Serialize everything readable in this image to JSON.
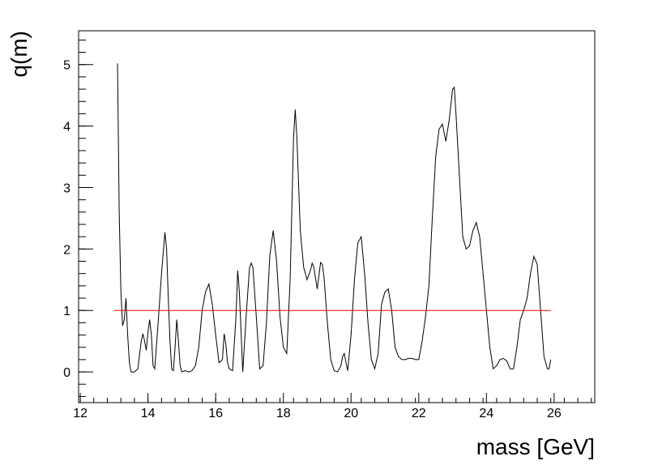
{
  "chart_data": {
    "type": "line",
    "title": "",
    "xlabel": "mass [GeV]",
    "ylabel": "q(m)",
    "xlim": [
      11.95,
      27.2
    ],
    "ylim": [
      -0.5,
      5.55
    ],
    "x_ticks": [
      12,
      14,
      16,
      18,
      20,
      22,
      24,
      26
    ],
    "y_ticks": [
      0,
      1,
      2,
      3,
      4,
      5
    ],
    "grid": false,
    "legend": "none",
    "series": [
      {
        "color": "#000000",
        "x": [
          13.1,
          13.15,
          13.2,
          13.25,
          13.3,
          13.35,
          13.4,
          13.45,
          13.5,
          13.55,
          13.6,
          13.7,
          13.8,
          13.85,
          13.9,
          13.95,
          14.0,
          14.05,
          14.1,
          14.15,
          14.2,
          14.3,
          14.4,
          14.5,
          14.55,
          14.6,
          14.65,
          14.7,
          14.75,
          14.8,
          14.85,
          14.9,
          14.95,
          15.0,
          15.1,
          15.2,
          15.3,
          15.4,
          15.5,
          15.6,
          15.7,
          15.8,
          15.9,
          16.0,
          16.1,
          16.2,
          16.25,
          16.3,
          16.35,
          16.4,
          16.5,
          16.6,
          16.65,
          16.7,
          16.8,
          16.9,
          17.0,
          17.05,
          17.1,
          17.2,
          17.3,
          17.4,
          17.5,
          17.6,
          17.7,
          17.8,
          17.9,
          18.0,
          18.1,
          18.2,
          18.3,
          18.35,
          18.4,
          18.5,
          18.6,
          18.7,
          18.8,
          18.85,
          18.9,
          19.0,
          19.1,
          19.15,
          19.2,
          19.3,
          19.4,
          19.5,
          19.6,
          19.7,
          19.75,
          19.8,
          19.85,
          19.9,
          20.0,
          20.1,
          20.2,
          20.3,
          20.4,
          20.5,
          20.6,
          20.7,
          20.8,
          20.9,
          21.0,
          21.1,
          21.2,
          21.3,
          21.4,
          21.5,
          21.6,
          21.7,
          21.8,
          21.9,
          22.0,
          22.1,
          22.2,
          22.3,
          22.4,
          22.5,
          22.6,
          22.7,
          22.8,
          22.9,
          23.0,
          23.05,
          23.1,
          23.2,
          23.3,
          23.4,
          23.5,
          23.6,
          23.7,
          23.8,
          23.9,
          24.0,
          24.1,
          24.2,
          24.3,
          24.4,
          24.5,
          24.6,
          24.7,
          24.8,
          24.9,
          25.0,
          25.1,
          25.2,
          25.3,
          25.4,
          25.5,
          25.6,
          25.7,
          25.8,
          25.85,
          25.9
        ],
        "y": [
          5.02,
          2.6,
          1.3,
          0.75,
          0.85,
          1.2,
          0.6,
          0.15,
          0.0,
          0.0,
          0.0,
          0.05,
          0.5,
          0.62,
          0.5,
          0.35,
          0.65,
          0.85,
          0.6,
          0.1,
          0.05,
          0.8,
          1.6,
          2.27,
          2.0,
          1.2,
          0.5,
          0.05,
          0.02,
          0.4,
          0.85,
          0.5,
          0.1,
          0.0,
          0.02,
          0.0,
          0.02,
          0.1,
          0.4,
          1.0,
          1.3,
          1.43,
          1.1,
          0.6,
          0.15,
          0.2,
          0.62,
          0.45,
          0.15,
          0.05,
          0.02,
          0.9,
          1.65,
          1.3,
          0.0,
          0.9,
          1.7,
          1.77,
          1.7,
          0.9,
          0.05,
          0.1,
          0.8,
          1.9,
          2.3,
          1.8,
          0.9,
          0.4,
          0.3,
          1.5,
          3.8,
          4.27,
          3.8,
          2.3,
          1.7,
          1.5,
          1.65,
          1.77,
          1.7,
          1.35,
          1.78,
          1.75,
          1.55,
          0.8,
          0.2,
          0.02,
          0.0,
          0.1,
          0.25,
          0.3,
          0.15,
          0.02,
          0.6,
          1.5,
          2.1,
          2.2,
          1.6,
          0.8,
          0.2,
          0.05,
          0.3,
          1.1,
          1.3,
          1.35,
          1.0,
          0.4,
          0.25,
          0.2,
          0.2,
          0.22,
          0.22,
          0.2,
          0.2,
          0.5,
          0.9,
          1.4,
          2.5,
          3.5,
          3.95,
          4.03,
          3.75,
          4.1,
          4.6,
          4.63,
          4.2,
          3.2,
          2.2,
          2.0,
          2.05,
          2.3,
          2.43,
          2.2,
          1.6,
          1.0,
          0.4,
          0.05,
          0.1,
          0.2,
          0.22,
          0.18,
          0.05,
          0.05,
          0.4,
          0.85,
          1.0,
          1.2,
          1.6,
          1.88,
          1.75,
          1.0,
          0.25,
          0.05,
          0.05,
          0.2
        ]
      },
      {
        "color": "#ff0000",
        "x": [
          13.0,
          25.9
        ],
        "y": [
          1.0,
          1.0
        ]
      }
    ]
  }
}
